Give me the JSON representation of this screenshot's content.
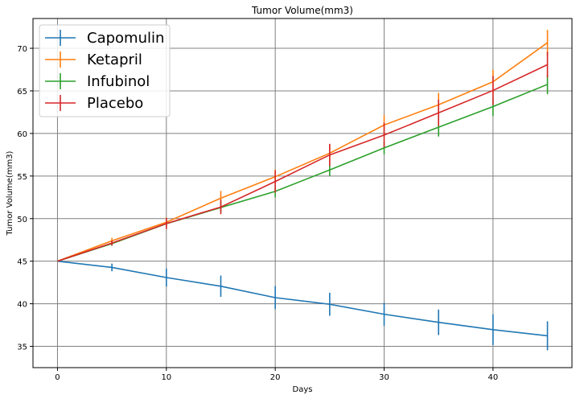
{
  "chart_data": {
    "type": "line",
    "title": "Tumor Volume(mm3)",
    "xlabel": "Days",
    "ylabel": "Tumor Volume(mm3)",
    "xlim": [
      -2.25,
      47.25
    ],
    "ylim": [
      32.5,
      73.5
    ],
    "xticks": [
      0,
      10,
      20,
      30,
      40
    ],
    "yticks": [
      35,
      40,
      45,
      50,
      55,
      60,
      65,
      70
    ],
    "grid": true,
    "legend_position": "top-left",
    "x": [
      0,
      5,
      10,
      15,
      20,
      25,
      30,
      35,
      40,
      45
    ],
    "series": [
      {
        "name": "Capomulin",
        "color": "#1f77b4",
        "values": [
          45.0,
          44.27,
          43.08,
          42.06,
          40.72,
          39.94,
          38.77,
          37.82,
          36.96,
          36.24
        ],
        "errors": [
          0.0,
          0.45,
          1.05,
          1.25,
          1.35,
          1.35,
          1.35,
          1.5,
          1.8,
          1.7
        ]
      },
      {
        "name": "Ketapril",
        "color": "#ff7f0e",
        "values": [
          45.0,
          47.39,
          49.58,
          52.4,
          54.92,
          57.68,
          60.99,
          63.37,
          66.07,
          70.66
        ],
        "errors": [
          0.0,
          0.35,
          0.55,
          0.85,
          0.85,
          1.05,
          1.15,
          1.4,
          1.4,
          1.5
        ]
      },
      {
        "name": "Infubinol",
        "color": "#2ca02c",
        "values": [
          45.0,
          47.06,
          49.4,
          51.3,
          53.2,
          55.72,
          58.3,
          60.74,
          63.16,
          65.76
        ],
        "errors": [
          0.0,
          0.25,
          0.45,
          0.55,
          0.7,
          0.75,
          0.75,
          1.1,
          1.1,
          1.15
        ]
      },
      {
        "name": "Placebo",
        "color": "#d62728",
        "values": [
          45.0,
          47.13,
          49.42,
          51.36,
          54.36,
          57.48,
          59.81,
          62.42,
          65.05,
          68.08
        ],
        "errors": [
          0.0,
          0.3,
          0.65,
          0.85,
          1.3,
          1.3,
          1.45,
          1.55,
          1.7,
          1.5
        ]
      }
    ]
  },
  "colors": {
    "axis": "#000000",
    "grid": "#808080",
    "legend_border": "#cccccc",
    "background": "#ffffff"
  }
}
